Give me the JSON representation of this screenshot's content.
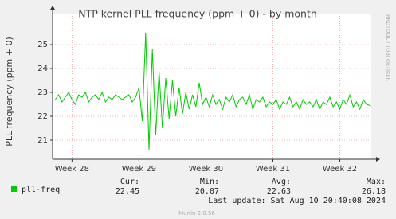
{
  "chart_data": {
    "type": "line",
    "title": "NTP kernel PLL frequency (ppm + 0) - by month",
    "y_label": "PLL frequency (ppm + 0)",
    "watermark": "RRDTOOL / TOBI OETIKER",
    "x": [
      27.75,
      27.8,
      27.85,
      27.9,
      27.95,
      28,
      28.05,
      28.1,
      28.15,
      28.2,
      28.25,
      28.3,
      28.35,
      28.4,
      28.45,
      28.5,
      28.55,
      28.6,
      28.65,
      28.7,
      28.75,
      28.8,
      28.85,
      28.9,
      28.95,
      29,
      29.05,
      29.1,
      29.15,
      29.2,
      29.25,
      29.3,
      29.35,
      29.4,
      29.45,
      29.5,
      29.55,
      29.6,
      29.65,
      29.7,
      29.75,
      29.8,
      29.85,
      29.9,
      29.95,
      30,
      30.05,
      30.1,
      30.15,
      30.2,
      30.25,
      30.3,
      30.35,
      30.4,
      30.45,
      30.5,
      30.55,
      30.6,
      30.65,
      30.7,
      30.75,
      30.8,
      30.85,
      30.9,
      30.95,
      31,
      31.05,
      31.1,
      31.15,
      31.2,
      31.25,
      31.3,
      31.35,
      31.4,
      31.45,
      31.5,
      31.55,
      31.6,
      31.65,
      31.7,
      31.75,
      31.8,
      31.85,
      31.9,
      31.95,
      32,
      32.05,
      32.1,
      32.15,
      32.2,
      32.25,
      32.3,
      32.35,
      32.4,
      32.45
    ],
    "series": [
      {
        "name": "pll-freq",
        "color": "#00cc00",
        "values": [
          22.7,
          22.9,
          22.6,
          22.8,
          23.0,
          22.7,
          22.5,
          22.9,
          22.8,
          23.0,
          22.6,
          22.8,
          22.9,
          22.7,
          23.0,
          22.6,
          22.8,
          22.7,
          22.9,
          22.8,
          22.7,
          22.8,
          22.9,
          22.6,
          22.8,
          23.2,
          21.8,
          25.5,
          20.6,
          24.8,
          21.2,
          23.9,
          21.5,
          23.6,
          21.9,
          23.5,
          22.0,
          23.2,
          22.1,
          23.0,
          22.3,
          22.9,
          22.4,
          23.4,
          22.5,
          22.8,
          22.4,
          22.9,
          22.5,
          22.7,
          22.3,
          22.8,
          22.6,
          22.9,
          22.4,
          22.7,
          22.8,
          22.5,
          22.9,
          22.3,
          22.7,
          22.6,
          22.8,
          22.4,
          22.6,
          22.5,
          22.7,
          22.3,
          22.6,
          22.5,
          22.8,
          22.4,
          22.6,
          22.3,
          22.7,
          22.5,
          22.6,
          22.4,
          22.7,
          22.3,
          22.6,
          22.5,
          22.8,
          22.4,
          22.6,
          22.3,
          22.7,
          22.5,
          22.9,
          22.4,
          22.6,
          22.3,
          22.7,
          22.5,
          22.45
        ]
      }
    ],
    "xlim": [
      27.71,
      32.47
    ],
    "xticks": [
      {
        "value": 28,
        "label": "Week 28"
      },
      {
        "value": 29,
        "label": "Week 29"
      },
      {
        "value": 30,
        "label": "Week 30"
      },
      {
        "value": 31,
        "label": "Week 31"
      },
      {
        "value": 32,
        "label": "Week 32"
      }
    ],
    "ylim": [
      20.2,
      26.3
    ],
    "yticks": [
      21,
      22,
      23,
      24,
      25
    ],
    "grid": true,
    "stats": {
      "labels": [
        "Cur:",
        "Min:",
        "Avg:",
        "Max:"
      ],
      "values": [
        22.45,
        20.07,
        22.63,
        26.18
      ]
    },
    "last_update": "Last update: Sat Aug 10 20:40:08 2024",
    "footer": "Munin 2.0.56"
  }
}
